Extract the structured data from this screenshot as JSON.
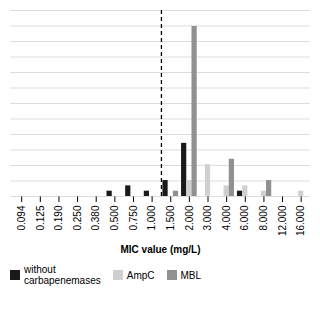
{
  "chart_data": {
    "type": "bar",
    "categories": [
      "0.094",
      "0.125",
      "0.190",
      "0.250",
      "0.380",
      "0.500",
      "0.750",
      "1.000",
      "1.500",
      "2.000",
      "3.000",
      "4.000",
      "6.000",
      "8.000",
      "12.000",
      "16.000"
    ],
    "series": [
      {
        "name": "without\ncarbapenemases",
        "color": "#1a1a1a",
        "values": [
          0,
          0,
          0,
          0,
          0,
          1,
          2,
          1,
          3,
          10,
          0,
          0,
          1,
          0,
          0,
          0
        ]
      },
      {
        "name": "AmpC",
        "color": "#d0d0d0",
        "values": [
          0,
          0,
          0,
          0,
          0,
          0,
          0,
          0,
          0,
          3,
          6,
          2,
          2,
          1,
          0,
          1
        ]
      },
      {
        "name": "MBL",
        "color": "#909090",
        "values": [
          0,
          0,
          0,
          0,
          0,
          0,
          0,
          0,
          1,
          32,
          0,
          7,
          0,
          3,
          0,
          0
        ]
      }
    ],
    "xlabel": "MIC value (mg/L)",
    "ylim": [
      0,
      35
    ],
    "yticks": [
      0,
      2.9166666666666665,
      5.833333333333333,
      8.75,
      11.666666666666666,
      14.583333333333334,
      17.5,
      20.416666666666668,
      23.333333333333332,
      26.25,
      29.166666666666668,
      32.083333333333336,
      35
    ],
    "grid": true,
    "tick_labels": "x",
    "legend": "below",
    "vline": {
      "after": "1.000",
      "line_style": "dashed"
    }
  }
}
